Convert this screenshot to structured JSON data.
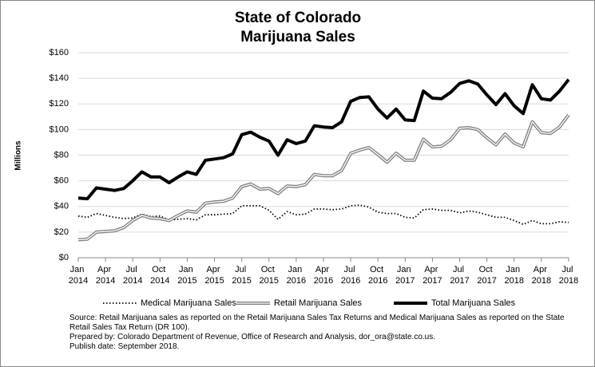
{
  "chart_data": {
    "type": "line",
    "title": [
      "State of Colorado",
      "Marijuana Sales"
    ],
    "y_label": "Millions",
    "categories": [
      "Jan 2014",
      null,
      null,
      "Apr 2014",
      null,
      null,
      "Jul 2014",
      null,
      null,
      "Oct 2014",
      null,
      null,
      "Jan 2015",
      null,
      null,
      "Apr 2015",
      null,
      null,
      "Jul 2015",
      null,
      null,
      "Oct 2015",
      null,
      null,
      "Jan 2016",
      null,
      null,
      "Apr 2016",
      null,
      null,
      "Jul 2016",
      null,
      null,
      "Oct 2016",
      null,
      null,
      "Jan 2017",
      null,
      null,
      "Apr 2017",
      null,
      null,
      "Jul 2017",
      null,
      null,
      "Oct 2017",
      null,
      null,
      "Jan 2018",
      null,
      null,
      "Apr 2018",
      null,
      null,
      "Jul 2018"
    ],
    "series": [
      {
        "name": "Medical Marijuana Sales",
        "color": "#000000",
        "style": "dotted",
        "values": [
          32.5,
          31.5,
          34.5,
          33,
          31.5,
          30.5,
          31,
          34,
          32,
          32.5,
          29.5,
          30,
          30.5,
          29.5,
          33.5,
          33.5,
          34,
          34.5,
          40.5,
          40.5,
          40.5,
          37,
          30,
          36,
          33.5,
          34,
          38,
          38,
          37.5,
          38,
          40.5,
          41,
          39.5,
          35.5,
          34.5,
          34.5,
          31.5,
          31,
          37.5,
          38,
          37,
          37,
          35,
          36.5,
          35.5,
          33.5,
          31.5,
          31.5,
          29,
          26,
          29,
          26.5,
          26.5,
          28,
          27.5
        ]
      },
      {
        "name": "Retail Marijuana Sales",
        "color": "#808080",
        "style": "double",
        "values": [
          14,
          14.5,
          20,
          20.5,
          21,
          23.5,
          29,
          33,
          31,
          30.5,
          29,
          33,
          36.5,
          35.5,
          42.5,
          43.5,
          44,
          46.5,
          55.5,
          57.5,
          53.5,
          54,
          50,
          56,
          55.5,
          57,
          65,
          64,
          64,
          68,
          81.5,
          84,
          86,
          80.5,
          74.5,
          81.5,
          76,
          76,
          92.5,
          86.5,
          87,
          92,
          101,
          101.5,
          100,
          93.5,
          88,
          96.5,
          89.5,
          86.5,
          106,
          97.5,
          97,
          102,
          111.5
        ]
      },
      {
        "name": "Total Marijuana Sales",
        "color": "#000000",
        "style": "solid",
        "values": [
          46.5,
          46,
          54.5,
          53.5,
          52.5,
          54,
          60,
          67,
          63,
          63,
          58.5,
          63,
          67,
          65,
          76,
          77,
          78,
          81,
          96,
          98,
          94,
          91,
          80,
          92,
          89,
          91,
          103,
          102,
          101.5,
          106,
          122,
          125,
          125.5,
          116,
          109,
          116,
          107.5,
          107,
          130,
          124.5,
          124,
          129,
          136,
          138,
          135.5,
          127,
          119.5,
          128,
          118.5,
          112.5,
          135,
          124,
          123,
          130,
          139
        ]
      }
    ],
    "ylim": [
      0,
      160
    ],
    "yticks": [
      {
        "value": 0,
        "label": "$0"
      },
      {
        "value": 20,
        "label": "$20"
      },
      {
        "value": 40,
        "label": "$40"
      },
      {
        "value": 60,
        "label": "$60"
      },
      {
        "value": 80,
        "label": "$80"
      },
      {
        "value": 100,
        "label": "$100"
      },
      {
        "value": 120,
        "label": "$120"
      },
      {
        "value": 140,
        "label": "$140"
      },
      {
        "value": 160,
        "label": "$160"
      }
    ],
    "grid": true,
    "legend": "bottom",
    "notes": [
      "Source: Retail Marijuana sales as reported on the Retail Marijuana Sales Tax Returns and Medical Marijuana Sales as reported on the State Retail Sales Tax Return (DR 100).",
      "Prepared by: Colorado Department of Revenue, Office of Research and Analysis, dor_ora@state.co.us.",
      "Publish date: September 2018."
    ]
  }
}
